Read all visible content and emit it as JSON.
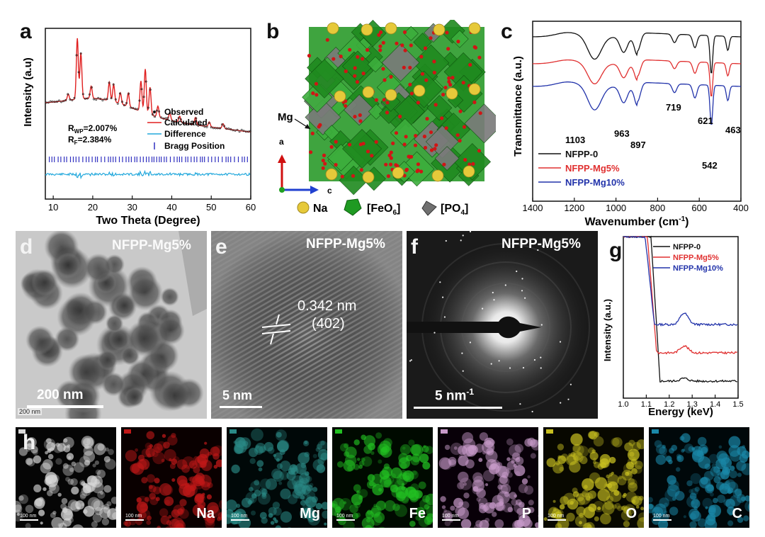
{
  "panel_labels": {
    "a": "a",
    "b": "b",
    "c": "c",
    "d": "d",
    "e": "e",
    "f": "f",
    "g": "g",
    "h": "h"
  },
  "chart_data": [
    {
      "type": "scatter",
      "panel": "a",
      "xlabel": "Two Theta (Degree)",
      "ylabel": "Intensity (a.u)",
      "xlim": [
        8,
        60
      ],
      "xticks": [
        10,
        20,
        30,
        40,
        50,
        60
      ],
      "legend": [
        "Observed",
        "Calculated",
        "Difference",
        "Bragg Position"
      ],
      "stats": {
        "rwp_prefix": "R",
        "rwp_sub": "WP",
        "rwp_value": "=2.007%",
        "rf_prefix": "R",
        "rf_sub": "F",
        "rf_value": "=2.384%"
      },
      "peaks": [
        {
          "x": 13.8,
          "y": 0.1
        },
        {
          "x": 16.1,
          "y": 1.0
        },
        {
          "x": 17.0,
          "y": 0.75
        },
        {
          "x": 19.6,
          "y": 0.2
        },
        {
          "x": 24.2,
          "y": 0.3
        },
        {
          "x": 25.3,
          "y": 0.28
        },
        {
          "x": 27.0,
          "y": 0.18
        },
        {
          "x": 29.0,
          "y": 0.22
        },
        {
          "x": 32.2,
          "y": 0.5
        },
        {
          "x": 33.3,
          "y": 0.72
        },
        {
          "x": 34.5,
          "y": 0.45
        },
        {
          "x": 36.5,
          "y": 0.18
        },
        {
          "x": 39.5,
          "y": 0.12
        },
        {
          "x": 42.0,
          "y": 0.1
        },
        {
          "x": 46.0,
          "y": 0.12
        },
        {
          "x": 49.5,
          "y": 0.08
        },
        {
          "x": 53.0,
          "y": 0.08
        }
      ]
    },
    {
      "type": "line",
      "panel": "c",
      "xlabel": "Wavenumber (cm",
      "xlabel_sup": "-1",
      "xlabel_end": ")",
      "ylabel": "Transmittance (a.u.)",
      "xlim": [
        1400,
        400
      ],
      "xticks": [
        1400,
        1200,
        1000,
        800,
        600,
        400
      ],
      "series": [
        {
          "name": "NFPP-0",
          "color": "#111111"
        },
        {
          "name": "NFPP-Mg5%",
          "color": "#e03030"
        },
        {
          "name": "NFPP-Mg10%",
          "color": "#2233aa"
        }
      ],
      "annotations": [
        "1103",
        "963",
        "897",
        "719",
        "621",
        "542",
        "463"
      ]
    },
    {
      "type": "line",
      "panel": "g",
      "xlabel": "Energy (keV)",
      "ylabel": "Intensity (a.u.)",
      "xlim": [
        1.0,
        1.5
      ],
      "xticks": [
        "1.0",
        "1.1",
        "1.2",
        "1.3",
        "1.4",
        "1.5"
      ],
      "series": [
        {
          "name": "NFPP-0",
          "color": "#111111"
        },
        {
          "name": "NFPP-Mg5%",
          "color": "#e03030"
        },
        {
          "name": "NFPP-Mg10%",
          "color": "#2233aa"
        }
      ]
    }
  ],
  "panel_b": {
    "mg_label": "Mg",
    "axis_a": "a",
    "axis_c": "c",
    "legend_na": "Na",
    "legend_feo_pre": "[FeO",
    "legend_feo_sub": "6",
    "legend_feo_post": "]",
    "legend_po_pre": "[PO",
    "legend_po_sub": "4",
    "legend_po_post": "]"
  },
  "panel_d": {
    "title": "NFPP-Mg5%",
    "scale": "200 nm",
    "scale_small": "200 nm"
  },
  "panel_e": {
    "title": "NFPP-Mg5%",
    "scale": "5 nm",
    "d_spacing": "0.342 nm",
    "plane": "(402)"
  },
  "panel_f": {
    "title": "NFPP-Mg5%",
    "scale_pre": "5 nm",
    "scale_sup": "-1"
  },
  "panel_h": {
    "maps": [
      {
        "element": "",
        "tint": "#d8d8d8",
        "bg": "#050505"
      },
      {
        "element": "Na",
        "tint": "#c01818",
        "bg": "#0a0000"
      },
      {
        "element": "Mg",
        "tint": "#2a8a86",
        "bg": "#000808"
      },
      {
        "element": "Fe",
        "tint": "#22c022",
        "bg": "#000a00"
      },
      {
        "element": "P",
        "tint": "#c79ac9",
        "bg": "#080008"
      },
      {
        "element": "O",
        "tint": "#c8c020",
        "bg": "#080800"
      },
      {
        "element": "C",
        "tint": "#1a88a8",
        "bg": "#00080a"
      }
    ],
    "scale_small": "100 nm"
  }
}
